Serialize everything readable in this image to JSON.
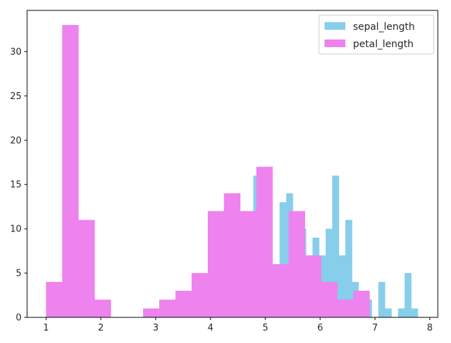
{
  "chart_data": {
    "type": "bar",
    "title": "",
    "xlabel": "",
    "ylabel": "",
    "xlim": [
      0.655,
      8.145
    ],
    "ylim": [
      0,
      34.65
    ],
    "grid": false,
    "legend_placement": "top-right",
    "xticks": [
      "1",
      "2",
      "3",
      "4",
      "5",
      "6",
      "7",
      "8"
    ],
    "yticks": [
      "0",
      "5",
      "10",
      "15",
      "20",
      "25",
      "30"
    ],
    "series": [
      {
        "name": "sepal_length",
        "color": "#87ceeb",
        "bin_edges": [
          4.3,
          4.42,
          4.54,
          4.66,
          4.78,
          4.9,
          5.02,
          5.14,
          5.26,
          5.38,
          5.5,
          5.62,
          5.74,
          5.86,
          5.98,
          6.1,
          6.22,
          6.34,
          6.46,
          6.58,
          6.7,
          6.82,
          6.94,
          7.06,
          7.18,
          7.3,
          7.42,
          7.54,
          7.66,
          7.78,
          7.9
        ],
        "values": [
          4,
          1,
          6,
          5,
          16,
          9,
          5,
          6,
          13,
          14,
          10,
          10,
          7,
          9,
          7,
          10,
          16,
          7,
          11,
          4,
          2,
          2,
          0,
          4,
          1,
          0,
          1,
          5,
          1,
          0
        ]
      },
      {
        "name": "petal_length",
        "color": "#ee82ee",
        "bin_edges": [
          1.0,
          1.295,
          1.59,
          1.885,
          2.18,
          2.475,
          2.77,
          3.065,
          3.36,
          3.655,
          3.95,
          4.245,
          4.54,
          4.835,
          5.13,
          5.425,
          5.72,
          6.015,
          6.31,
          6.605,
          6.9
        ],
        "values": [
          4,
          33,
          11,
          2,
          0,
          0,
          1,
          2,
          3,
          5,
          12,
          14,
          12,
          17,
          6,
          12,
          7,
          4,
          2,
          3
        ]
      }
    ]
  }
}
